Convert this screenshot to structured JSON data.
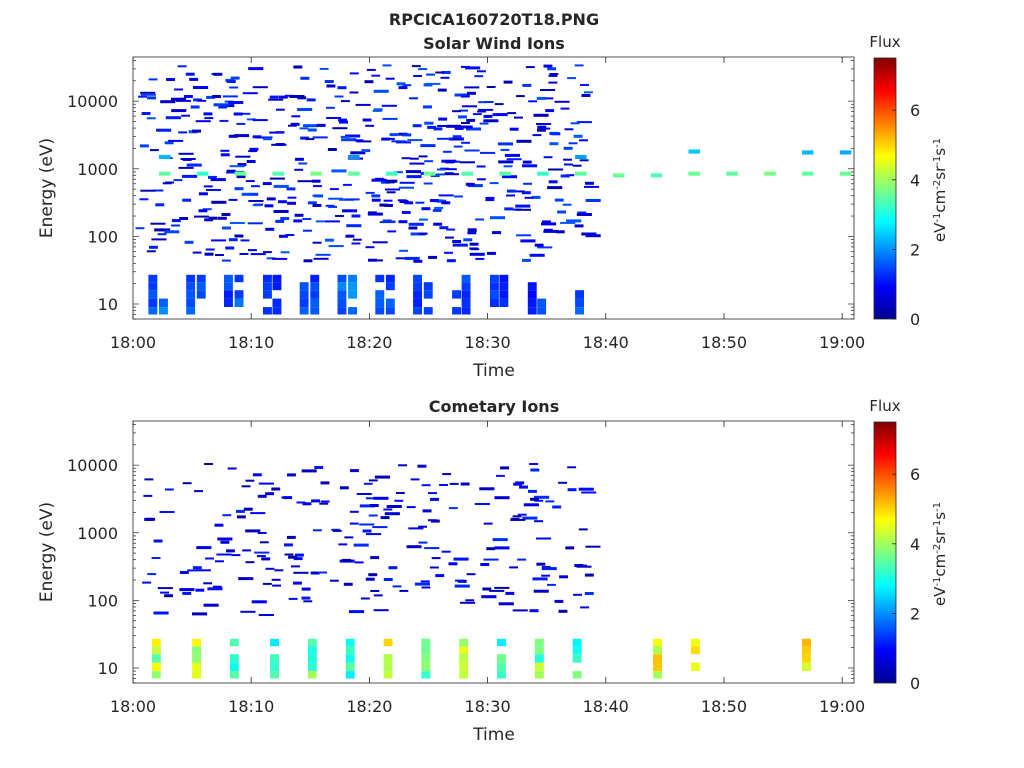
{
  "page_title": "RPCICA160720T18.PNG",
  "colorbar": {
    "label": "Flux",
    "ticks": [
      "0",
      "2",
      "4",
      "6"
    ],
    "range": [
      0,
      7.5
    ]
  },
  "panels": [
    {
      "title": "Solar Wind Ions",
      "ylabel": "Energy (eV)",
      "xlabel": "Time",
      "unit_label": "eV cm sr s"
    },
    {
      "title": "Cometary Ions",
      "ylabel": "Energy (eV)",
      "xlabel": "Time",
      "unit_label": "eV cm sr s"
    }
  ],
  "chart_data": [
    {
      "type": "heatmap",
      "title": "Solar Wind Ions",
      "xlabel": "Time",
      "ylabel": "Energy (eV)",
      "y_scale": "log",
      "ylim": [
        6,
        45000
      ],
      "xlim_minutes": [
        0,
        61
      ],
      "x_ticks": [
        "18:00",
        "18:10",
        "18:20",
        "18:30",
        "18:40",
        "18:50",
        "19:00"
      ],
      "y_ticks": [
        "10",
        "100",
        "1000",
        "10000"
      ],
      "colorbar_label": "Flux",
      "colorbar_units": "eV-1cm-2sr-1s-1",
      "colorbar_range": [
        0,
        7.5
      ],
      "colorbar_ticks": [
        0,
        2,
        4,
        6
      ],
      "noise_until_minute": 38.5,
      "cells": [
        {
          "t": 2.2,
          "e": 850,
          "v": 3.5
        },
        {
          "t": 5.4,
          "e": 850,
          "v": 3.2
        },
        {
          "t": 8.6,
          "e": 850,
          "v": 3.6
        },
        {
          "t": 11.8,
          "e": 850,
          "v": 3.4
        },
        {
          "t": 15.0,
          "e": 850,
          "v": 3.7
        },
        {
          "t": 18.2,
          "e": 850,
          "v": 3.5
        },
        {
          "t": 21.4,
          "e": 850,
          "v": 3.3
        },
        {
          "t": 24.6,
          "e": 850,
          "v": 3.6
        },
        {
          "t": 27.8,
          "e": 850,
          "v": 3.4
        },
        {
          "t": 31.0,
          "e": 850,
          "v": 3.5
        },
        {
          "t": 34.2,
          "e": 850,
          "v": 3.2
        },
        {
          "t": 37.4,
          "e": 850,
          "v": 3.5
        },
        {
          "t": 40.6,
          "e": 800,
          "v": 3.6
        },
        {
          "t": 43.8,
          "e": 800,
          "v": 3.4
        },
        {
          "t": 47.0,
          "e": 850,
          "v": 3.6
        },
        {
          "t": 50.2,
          "e": 850,
          "v": 3.5
        },
        {
          "t": 53.4,
          "e": 850,
          "v": 3.7
        },
        {
          "t": 56.6,
          "e": 850,
          "v": 3.5
        },
        {
          "t": 59.8,
          "e": 850,
          "v": 3.6
        },
        {
          "t": 47.0,
          "e": 1800,
          "v": 2.4
        },
        {
          "t": 56.6,
          "e": 1750,
          "v": 2.3
        },
        {
          "t": 59.8,
          "e": 1750,
          "v": 2.2
        },
        {
          "t": 2.2,
          "e": 1500,
          "v": 2.3
        },
        {
          "t": 18.2,
          "e": 1500,
          "v": 2.0
        },
        {
          "t": 37.4,
          "e": 1500,
          "v": 2.1
        }
      ],
      "low_energy_cells": [
        {
          "t": 1.3,
          "v": 1.6
        },
        {
          "t": 2.2,
          "v": 1.8
        },
        {
          "t": 4.5,
          "v": 1.5
        },
        {
          "t": 5.4,
          "v": 1.7
        },
        {
          "t": 7.7,
          "v": 1.4
        },
        {
          "t": 8.6,
          "v": 1.6
        },
        {
          "t": 11.0,
          "v": 1.3
        },
        {
          "t": 11.8,
          "v": 1.2
        },
        {
          "t": 14.1,
          "v": 1.5
        },
        {
          "t": 15.0,
          "v": 1.4
        },
        {
          "t": 17.3,
          "v": 1.7
        },
        {
          "t": 18.2,
          "v": 1.9
        },
        {
          "t": 20.5,
          "v": 1.6
        },
        {
          "t": 21.4,
          "v": 1.5
        },
        {
          "t": 23.7,
          "v": 1.4
        },
        {
          "t": 24.6,
          "v": 1.3
        },
        {
          "t": 27.0,
          "v": 1.2
        },
        {
          "t": 27.8,
          "v": 1.5
        },
        {
          "t": 30.2,
          "v": 1.4
        },
        {
          "t": 31.0,
          "v": 1.3
        },
        {
          "t": 33.4,
          "v": 1.2
        },
        {
          "t": 34.2,
          "v": 1.5
        },
        {
          "t": 37.4,
          "v": 1.6
        }
      ]
    },
    {
      "type": "heatmap",
      "title": "Cometary Ions",
      "xlabel": "Time",
      "ylabel": "Energy (eV)",
      "y_scale": "log",
      "ylim": [
        6,
        45000
      ],
      "xlim_minutes": [
        0,
        61
      ],
      "x_ticks": [
        "18:00",
        "18:10",
        "18:20",
        "18:30",
        "18:40",
        "18:50",
        "19:00"
      ],
      "y_ticks": [
        "10",
        "100",
        "1000",
        "10000"
      ],
      "colorbar_label": "Flux",
      "colorbar_units": "eV-1cm-2sr-1s-1",
      "colorbar_range": [
        0,
        7.5
      ],
      "colorbar_ticks": [
        0,
        2,
        4,
        6
      ],
      "noise_until_minute": 38.5,
      "low_energy_cells": [
        {
          "t": 1.6,
          "v": 4.2
        },
        {
          "t": 5.0,
          "v": 4.6
        },
        {
          "t": 8.2,
          "v": 3.4
        },
        {
          "t": 11.6,
          "v": 3.2
        },
        {
          "t": 14.8,
          "v": 3.6
        },
        {
          "t": 18.0,
          "v": 3.3
        },
        {
          "t": 21.2,
          "v": 4.9
        },
        {
          "t": 24.4,
          "v": 3.5
        },
        {
          "t": 27.6,
          "v": 4.4
        },
        {
          "t": 30.8,
          "v": 3.2
        },
        {
          "t": 34.0,
          "v": 3.8
        },
        {
          "t": 37.2,
          "v": 3.4
        },
        {
          "t": 44.0,
          "v": 5.0
        },
        {
          "t": 47.2,
          "v": 4.6
        },
        {
          "t": 56.6,
          "v": 4.7
        }
      ]
    }
  ]
}
